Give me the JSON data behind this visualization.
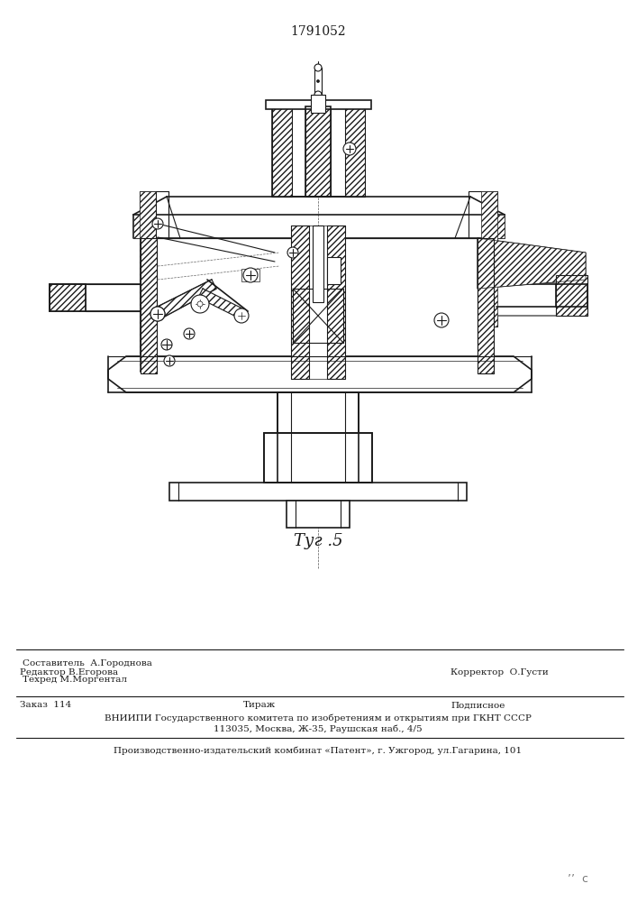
{
  "patent_number": "1791052",
  "fig_label": "Τуг .5",
  "bg_color": "#f5f5f5",
  "line_color": "#1a1a1a",
  "footer_line1_left": "Редактор В.Егорова",
  "footer_line1_center_top": "Составитель  А.Городнова",
  "footer_line1_center_bot": "Техред М.Моргентал",
  "footer_line1_right": "Корректор  О.Густи",
  "footer_line2_left": "Заказ  114",
  "footer_line2_center": "Тираж",
  "footer_line2_right": "Подписное",
  "footer_line3": "ВНИИПИ Государственного комитета по изобретениям и открытиям при ГКНТ СССР",
  "footer_line4": "113035, Москва, Ж-35, Раушская наб., 4/5",
  "footer_line5": "Производственно-издательский комбинат «Патент», г. Ужгород, ул.Гагарина, 101",
  "corner_mark": "’’  с"
}
